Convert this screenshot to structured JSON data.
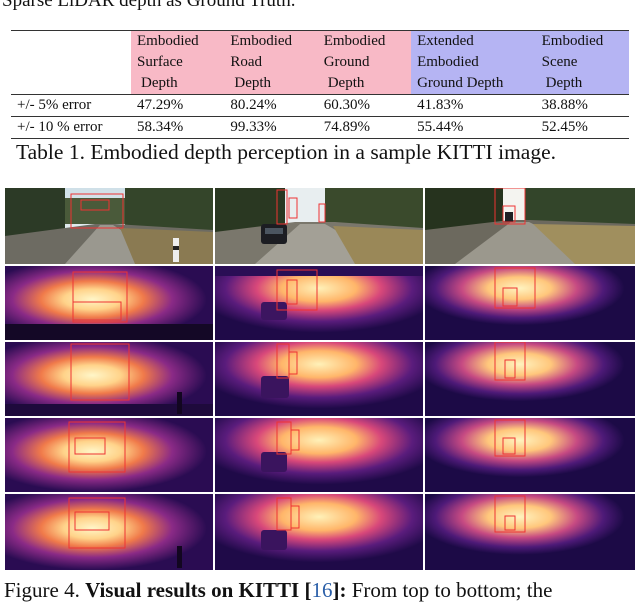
{
  "top_text": "Sparse LiDAR depth as Ground Truth.",
  "table": {
    "headers": [
      {
        "lines": [
          "Embodied",
          "Surface",
          "Depth"
        ],
        "color": "#f8b9c6"
      },
      {
        "lines": [
          "Embodied",
          "Road",
          "Depth"
        ],
        "color": "#f8b9c6"
      },
      {
        "lines": [
          "Embodied",
          "Ground",
          "Depth"
        ],
        "color": "#f8b9c6"
      },
      {
        "lines": [
          "Extended",
          "Embodied",
          "Ground Depth"
        ],
        "color": "#b5b4f3"
      },
      {
        "lines": [
          "Embodied",
          "Scene",
          "Depth"
        ],
        "color": "#b5b4f3"
      }
    ],
    "rows": [
      {
        "label": "+/- 5% error",
        "values": [
          "47.29%",
          "80.24%",
          "60.30%",
          "41.83%",
          "38.88%"
        ]
      },
      {
        "label": "+/- 10 % error",
        "values": [
          "58.34%",
          "99.33%",
          "74.89%",
          "55.44%",
          "52.45%"
        ]
      }
    ]
  },
  "table_caption": "Table 1. Embodied depth perception in a sample KITTI image.",
  "figure": {
    "columns": 3,
    "rows": [
      "rgb",
      "depth",
      "depth",
      "depth",
      "depth"
    ]
  },
  "figure_caption": {
    "prefix": "Figure 4.",
    "bold": "Visual results on KITTI [",
    "ref": "16",
    "bold_end": "]:",
    "rest": "From top to bottom; the"
  }
}
